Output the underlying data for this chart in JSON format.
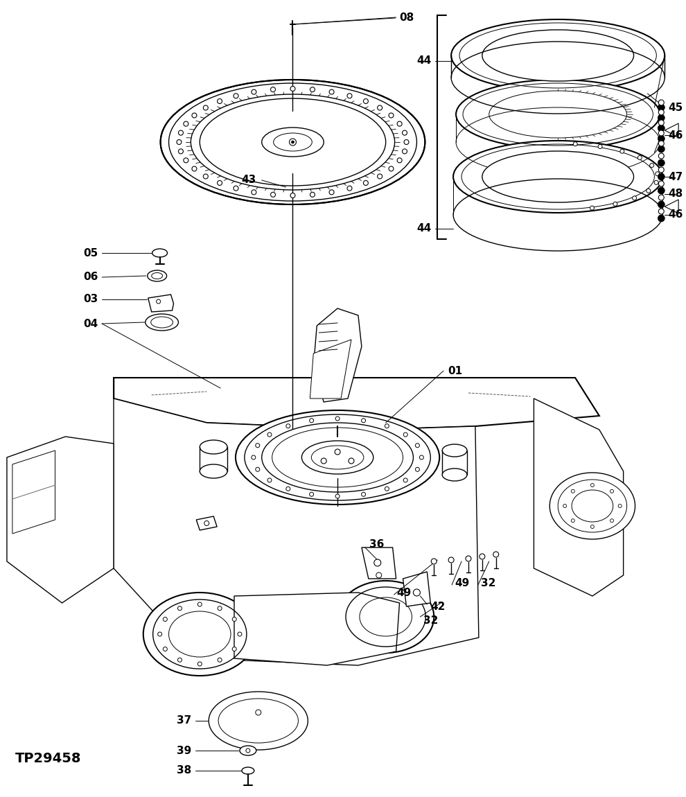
{
  "bg_color": "#ffffff",
  "line_color": "#000000",
  "fig_width": 9.9,
  "fig_height": 11.5,
  "dpi": 100,
  "watermark": "TP29458",
  "label_fontsize": 11,
  "anno_fontsize": 10
}
